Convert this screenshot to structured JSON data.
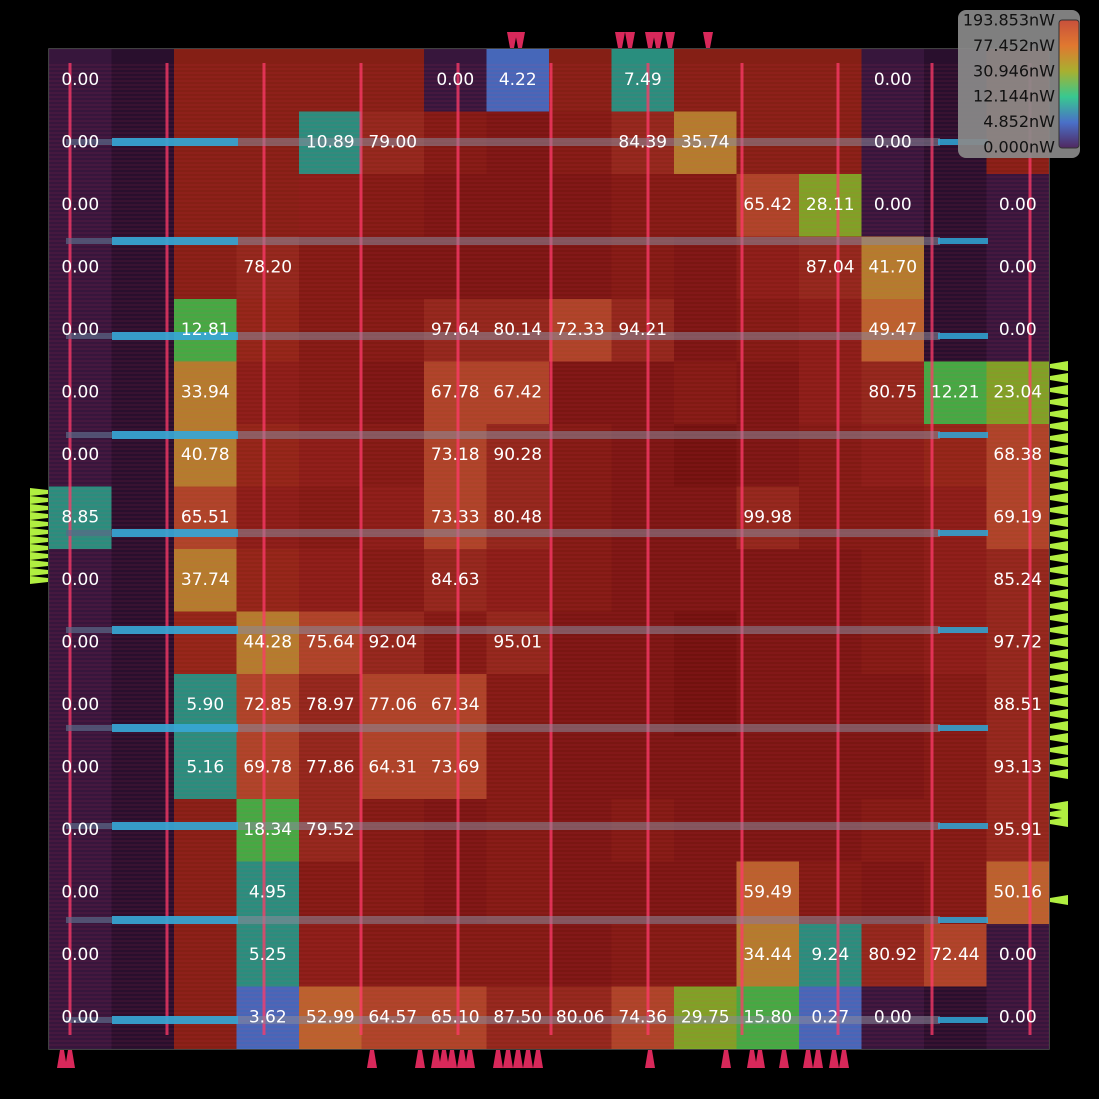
{
  "chart_data": {
    "type": "heatmap",
    "title": "",
    "xlabel": "",
    "ylabel": "",
    "rows": 16,
    "cols": 16,
    "unit": "nW",
    "labels": [
      [
        "0.00",
        null,
        null,
        null,
        null,
        null,
        "0.00",
        "4.22",
        null,
        "7.49",
        null,
        null,
        null,
        "0.00",
        null,
        null
      ],
      [
        "0.00",
        null,
        null,
        null,
        "10.89",
        "79.00",
        null,
        null,
        null,
        "84.39",
        "35.74",
        null,
        null,
        "0.00",
        null,
        null
      ],
      [
        "0.00",
        null,
        null,
        null,
        null,
        null,
        null,
        null,
        null,
        null,
        null,
        "65.42",
        "28.11",
        "0.00",
        null,
        "0.00"
      ],
      [
        "0.00",
        null,
        null,
        "78.20",
        null,
        null,
        null,
        null,
        null,
        null,
        null,
        null,
        "87.04",
        "41.70",
        null,
        "0.00"
      ],
      [
        "0.00",
        null,
        "12.81",
        null,
        null,
        null,
        "97.64",
        "80.14",
        "72.33",
        "94.21",
        null,
        null,
        null,
        "49.47",
        null,
        "0.00"
      ],
      [
        "0.00",
        null,
        "33.94",
        null,
        null,
        null,
        "67.78",
        "67.42",
        null,
        null,
        null,
        null,
        null,
        "80.75",
        "12.21",
        "23.04"
      ],
      [
        "0.00",
        null,
        "40.78",
        null,
        null,
        null,
        "73.18",
        "90.28",
        null,
        null,
        null,
        null,
        null,
        null,
        null,
        "68.38"
      ],
      [
        "8.85",
        null,
        "65.51",
        null,
        null,
        null,
        "73.33",
        "80.48",
        null,
        null,
        null,
        "99.98",
        null,
        null,
        null,
        "69.19"
      ],
      [
        "0.00",
        null,
        "37.74",
        null,
        null,
        null,
        "84.63",
        null,
        null,
        null,
        null,
        null,
        null,
        null,
        null,
        "85.24"
      ],
      [
        "0.00",
        null,
        null,
        "44.28",
        "75.64",
        "92.04",
        null,
        "95.01",
        null,
        null,
        null,
        null,
        null,
        null,
        null,
        "97.72"
      ],
      [
        "0.00",
        null,
        "5.90",
        "72.85",
        "78.97",
        "77.06",
        "67.34",
        null,
        null,
        null,
        null,
        null,
        null,
        null,
        null,
        "88.51"
      ],
      [
        "0.00",
        null,
        "5.16",
        "69.78",
        "77.86",
        "64.31",
        "73.69",
        null,
        null,
        null,
        null,
        null,
        null,
        null,
        null,
        "93.13"
      ],
      [
        "0.00",
        null,
        null,
        "18.34",
        "79.52",
        null,
        null,
        null,
        null,
        null,
        null,
        null,
        null,
        null,
        null,
        "95.91"
      ],
      [
        "0.00",
        null,
        null,
        "4.95",
        null,
        null,
        null,
        null,
        null,
        null,
        null,
        "59.49",
        null,
        null,
        null,
        "50.16"
      ],
      [
        "0.00",
        null,
        null,
        "5.25",
        null,
        null,
        null,
        null,
        null,
        null,
        null,
        "34.44",
        "9.24",
        "80.92",
        "72.44",
        "0.00"
      ],
      [
        "0.00",
        null,
        null,
        "3.62",
        "52.99",
        "64.57",
        "65.10",
        "87.50",
        "80.06",
        "74.36",
        "29.75",
        "15.80",
        "0.27",
        "0.00",
        null,
        "0.00"
      ]
    ],
    "filled_unlabeled": [
      [
        null,
        "0.00",
        null,
        null,
        null,
        null,
        null,
        null,
        null,
        null,
        null,
        null,
        null,
        null,
        "0.00",
        null
      ],
      [
        null,
        "0.00",
        null,
        null,
        null,
        null,
        150,
        160,
        150,
        null,
        null,
        null,
        null,
        null,
        "0.00",
        null
      ],
      [
        null,
        "0.00",
        null,
        null,
        140,
        150,
        160,
        170,
        160,
        150,
        150,
        null,
        null,
        null,
        "0.00",
        null
      ],
      [
        null,
        "0.00",
        null,
        null,
        150,
        160,
        170,
        160,
        160,
        150,
        160,
        140,
        null,
        null,
        "0.00",
        null
      ],
      [
        null,
        "0.00",
        null,
        120,
        150,
        150,
        null,
        null,
        null,
        null,
        170,
        150,
        130,
        null,
        "0.00",
        null
      ],
      [
        null,
        "0.00",
        null,
        130,
        150,
        160,
        null,
        null,
        160,
        170,
        150,
        170,
        140,
        null,
        null,
        null
      ],
      [
        null,
        "0.00",
        null,
        120,
        140,
        150,
        null,
        null,
        150,
        160,
        190,
        160,
        150,
        130,
        120,
        null
      ],
      [
        null,
        "0.00",
        null,
        130,
        150,
        140,
        null,
        null,
        150,
        160,
        170,
        null,
        150,
        150,
        130,
        null
      ],
      [
        null,
        "0.00",
        null,
        120,
        140,
        150,
        null,
        140,
        150,
        160,
        170,
        170,
        160,
        150,
        140,
        null
      ],
      [
        null,
        "0.00",
        110,
        null,
        null,
        null,
        150,
        null,
        160,
        170,
        180,
        170,
        170,
        150,
        140,
        null
      ],
      [
        null,
        "0.00",
        null,
        null,
        null,
        null,
        null,
        150,
        160,
        170,
        180,
        170,
        160,
        160,
        150,
        null
      ],
      [
        null,
        "0.00",
        null,
        null,
        null,
        null,
        null,
        150,
        160,
        170,
        160,
        170,
        170,
        160,
        150,
        null
      ],
      [
        null,
        "0.00",
        null,
        null,
        null,
        150,
        160,
        150,
        160,
        150,
        160,
        170,
        160,
        150,
        150,
        null
      ],
      [
        null,
        "0.00",
        null,
        null,
        150,
        150,
        160,
        150,
        160,
        170,
        160,
        null,
        150,
        160,
        150,
        null
      ],
      [
        null,
        "0.00",
        null,
        null,
        140,
        150,
        150,
        150,
        170,
        150,
        150,
        null,
        null,
        null,
        null,
        null
      ],
      [
        null,
        "0.00",
        null,
        null,
        null,
        null,
        null,
        null,
        null,
        null,
        null,
        null,
        null,
        null,
        "0.00",
        null
      ]
    ],
    "legend": {
      "ticks": [
        "193.853nW",
        "77.452nW",
        "30.946nW",
        "12.144nW",
        "4.852nW",
        "0.000nW"
      ],
      "colors": [
        "#c8503c",
        "#e07830",
        "#a8b030",
        "#38c890",
        "#4a70c8",
        "#502860"
      ]
    }
  }
}
